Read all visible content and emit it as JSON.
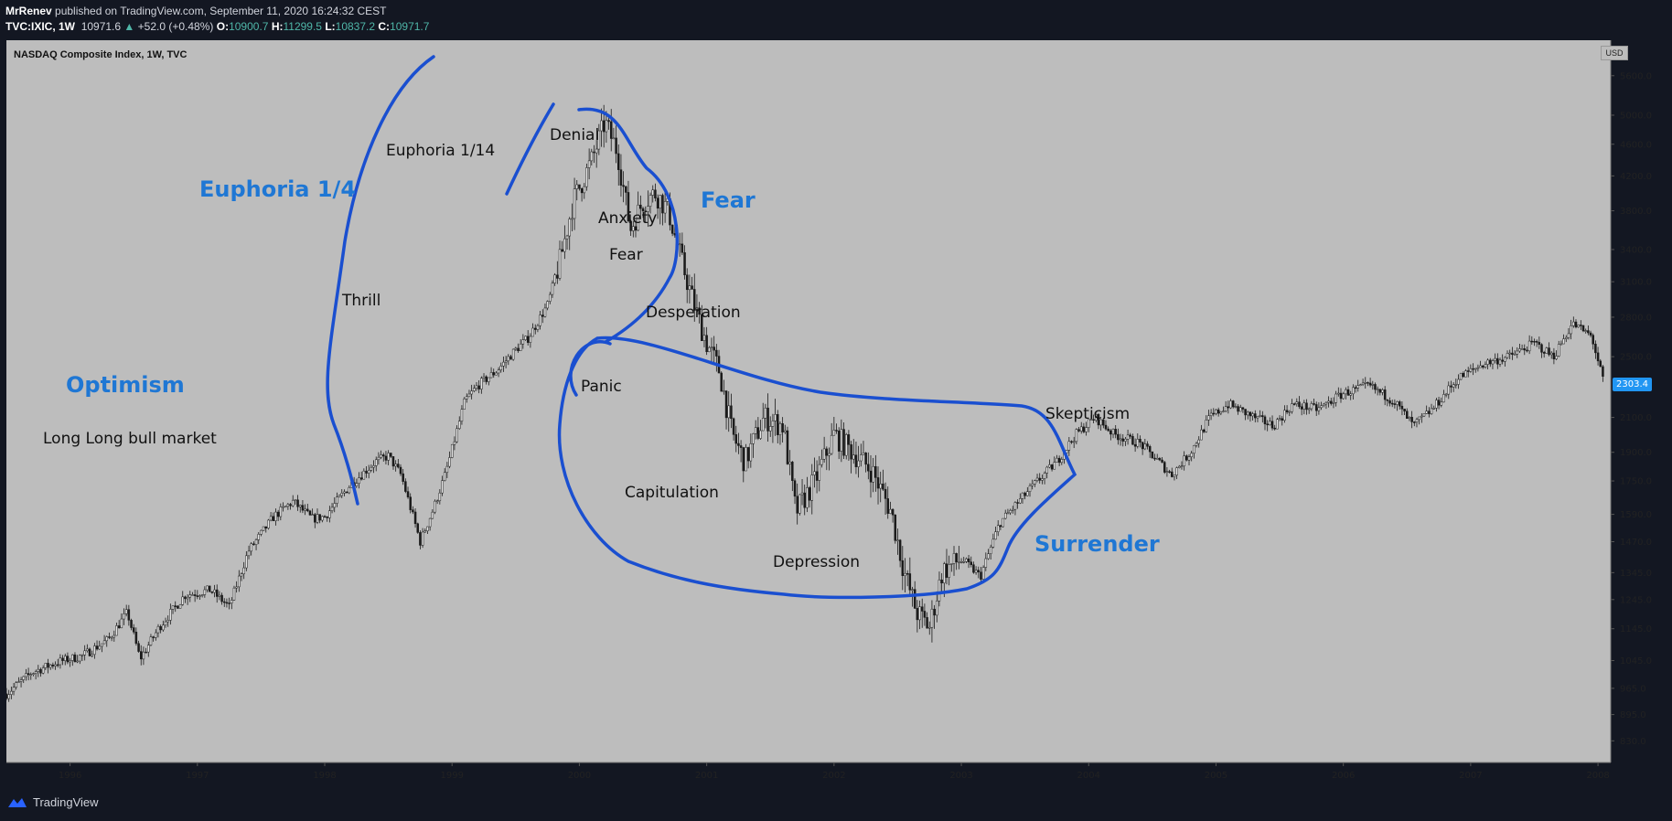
{
  "header": {
    "author": "MrRenev",
    "published_text": "published on TradingView.com, September 11, 2020 16:24:32 CEST",
    "symbol": "TVC:IXIC, 1W",
    "last": "10971.6",
    "change": "+52.0 (+0.48%)",
    "o_label": "O:",
    "o_val": "10900.7",
    "h_label": "H:",
    "h_val": "11299.5",
    "l_label": "L:",
    "l_val": "10837.2",
    "c_label": "C:",
    "c_val": "10971.7"
  },
  "footer": {
    "brand": "TradingView"
  },
  "colors": {
    "panel": "#bdbdbd",
    "annotation_blue": "#1f77d4",
    "stroke_blue": "#1a4fd0",
    "candle": "#1a1a1a"
  },
  "chart_data": {
    "type": "line",
    "title": "NASDAQ Composite Index, 1W, TVC",
    "currency": "USD",
    "last_price_tag": "2303.4",
    "x_tick_labels": [
      "1996",
      "1997",
      "1998",
      "1999",
      "2000",
      "2001",
      "2002",
      "2003",
      "2004",
      "2005",
      "2006",
      "2007",
      "2008"
    ],
    "y_tick_labels": [
      "5600.0",
      "5000.0",
      "4600.0",
      "4200.0",
      "3800.0",
      "3400.0",
      "3100.0",
      "2800.0",
      "2500.0",
      "2100.0",
      "1900.0",
      "1750.0",
      "1590.0",
      "1470.0",
      "1345.0",
      "1245.0",
      "1145.0",
      "1045.0",
      "965.0",
      "895.0",
      "830.0"
    ],
    "y_scale": "log",
    "ylim": [
      780,
      6200
    ],
    "xlim": [
      1995.5,
      2008.1
    ],
    "series": [
      {
        "x": [
          1995.5,
          1995.7,
          1995.9,
          1996.1,
          1996.3,
          1996.45,
          1996.55,
          1996.7,
          1996.9,
          1997.1,
          1997.25,
          1997.4,
          1997.6,
          1997.75,
          1997.9,
          1998.0,
          1998.2,
          1998.4,
          1998.5,
          1998.6,
          1998.75,
          1998.85,
          1998.95,
          1999.1,
          1999.2,
          1999.35,
          1999.5,
          1999.6,
          1999.75,
          1999.85,
          1999.95,
          2000.1,
          2000.2,
          2000.3,
          2000.4,
          2000.5,
          2000.6,
          2000.7,
          2000.8,
          2000.9,
          2001.0,
          2001.1,
          2001.2,
          2001.3,
          2001.45,
          2001.6,
          2001.7,
          2001.85,
          2002.0,
          2002.15,
          2002.3,
          2002.45,
          2002.55,
          2002.65,
          2002.75,
          2002.85,
          2003.0,
          2003.15,
          2003.3,
          2003.45,
          2003.6,
          2003.75,
          2003.9,
          2004.05,
          2004.2,
          2004.4,
          2004.55,
          2004.65,
          2004.8,
          2004.95,
          2005.1,
          2005.3,
          2005.45,
          2005.6,
          2005.8,
          2006.0,
          2006.2,
          2006.4,
          2006.55,
          2006.7,
          2006.9,
          2007.1,
          2007.3,
          2007.5,
          2007.65,
          2007.8,
          2007.95,
          2008.05
        ],
        "y": [
          950,
          1010,
          1040,
          1060,
          1110,
          1200,
          1050,
          1150,
          1260,
          1280,
          1220,
          1430,
          1580,
          1650,
          1570,
          1580,
          1730,
          1850,
          1880,
          1780,
          1470,
          1610,
          1790,
          2200,
          2300,
          2400,
          2550,
          2640,
          2900,
          3300,
          3900,
          4400,
          4900,
          4500,
          3600,
          3900,
          4000,
          3800,
          3300,
          2900,
          2600,
          2400,
          2000,
          1850,
          2100,
          2050,
          1600,
          1750,
          2000,
          1900,
          1800,
          1600,
          1350,
          1200,
          1150,
          1350,
          1400,
          1330,
          1550,
          1650,
          1750,
          1850,
          2000,
          2100,
          2000,
          1950,
          1850,
          1780,
          1900,
          2100,
          2180,
          2100,
          2050,
          2180,
          2150,
          2250,
          2300,
          2200,
          2050,
          2150,
          2350,
          2450,
          2500,
          2600,
          2500,
          2750,
          2650,
          2300
        ]
      }
    ],
    "annotations": [
      {
        "text": "Optimism",
        "style": "blue"
      },
      {
        "text": "Long Long bull market",
        "style": "black"
      },
      {
        "text": "Euphoria 1/4",
        "style": "blue"
      },
      {
        "text": "Thrill",
        "style": "black"
      },
      {
        "text": "Euphoria 1/14",
        "style": "black"
      },
      {
        "text": "Denial",
        "style": "black"
      },
      {
        "text": "Anxiety",
        "style": "black"
      },
      {
        "text": "Fear",
        "style": "black"
      },
      {
        "text": "Fear",
        "style": "blue"
      },
      {
        "text": "Desperation",
        "style": "black"
      },
      {
        "text": "Panic",
        "style": "black"
      },
      {
        "text": "Capitulation",
        "style": "black"
      },
      {
        "text": "Depression",
        "style": "black"
      },
      {
        "text": "Skepticism",
        "style": "black"
      },
      {
        "text": "Surrender",
        "style": "blue"
      }
    ]
  }
}
